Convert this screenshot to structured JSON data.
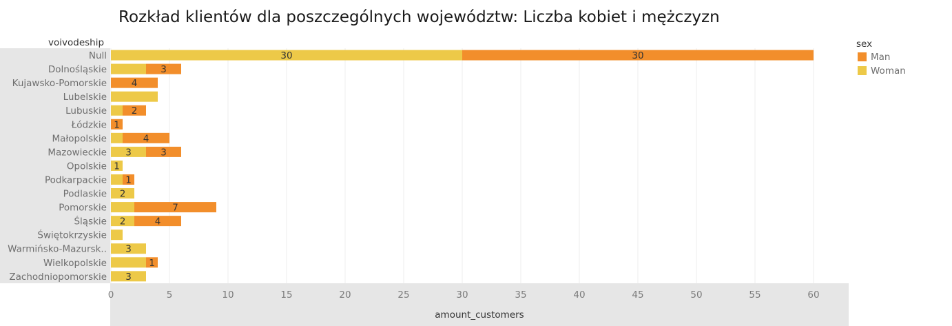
{
  "chart_data": {
    "type": "bar",
    "orientation": "horizontal",
    "stacked": true,
    "title": "Rozkład klientów dla poszczególnych województw: Liczba kobiet i mężczyzn",
    "row_header": "voivodeship",
    "xlabel": "amount_customers",
    "xlim": [
      0,
      63
    ],
    "xticks": [
      0,
      5,
      10,
      15,
      20,
      25,
      30,
      35,
      40,
      45,
      50,
      55,
      60
    ],
    "grid": true,
    "legend_title": "sex",
    "legend_position": "top-right",
    "categories": [
      "Null",
      "Dolnośląskie",
      "Kujawsko-Pomorskie",
      "Lubelskie",
      "Lubuskie",
      "Łódzkie",
      "Małopolskie",
      "Mazowieckie",
      "Opolskie",
      "Podkarpackie",
      "Podlaskie",
      "Pomorskie",
      "Śląskie",
      "Świętokrzyskie",
      "Warmińsko-Mazursk..",
      "Wielkopolskie",
      "Zachodniopomorskie"
    ],
    "series": [
      {
        "name": "Woman",
        "color": "#EDC948",
        "values": [
          30,
          3,
          0,
          4,
          1,
          0,
          1,
          3,
          1,
          1,
          2,
          2,
          2,
          1,
          3,
          3,
          3
        ]
      },
      {
        "name": "Man",
        "color": "#F28E2B",
        "values": [
          30,
          3,
          4,
          0,
          2,
          1,
          4,
          3,
          0,
          1,
          0,
          7,
          4,
          0,
          0,
          1,
          0
        ]
      }
    ],
    "data_labels": [
      {
        "category": "Null",
        "series": "Woman",
        "text": "30"
      },
      {
        "category": "Null",
        "series": "Man",
        "text": "30"
      },
      {
        "category": "Dolnośląskie",
        "series": "Man",
        "text": "3"
      },
      {
        "category": "Kujawsko-Pomorskie",
        "series": "Man",
        "text": "4"
      },
      {
        "category": "Lubuskie",
        "series": "Man",
        "text": "2"
      },
      {
        "category": "Łódzkie",
        "series": "Man",
        "text": "1"
      },
      {
        "category": "Małopolskie",
        "series": "Man",
        "text": "4"
      },
      {
        "category": "Mazowieckie",
        "series": "Woman",
        "text": "3"
      },
      {
        "category": "Mazowieckie",
        "series": "Man",
        "text": "3"
      },
      {
        "category": "Opolskie",
        "series": "Woman",
        "text": "1"
      },
      {
        "category": "Podkarpackie",
        "series": "Man",
        "text": "1"
      },
      {
        "category": "Podlaskie",
        "series": "Woman",
        "text": "2"
      },
      {
        "category": "Pomorskie",
        "series": "Man",
        "text": "7"
      },
      {
        "category": "Śląskie",
        "series": "Woman",
        "text": "2"
      },
      {
        "category": "Śląskie",
        "series": "Man",
        "text": "4"
      },
      {
        "category": "Warmińsko-Mazursk..",
        "series": "Woman",
        "text": "3"
      },
      {
        "category": "Wielkopolskie",
        "series": "Man",
        "text": "1"
      },
      {
        "category": "Zachodniopomorskie",
        "series": "Woman",
        "text": "3"
      }
    ]
  }
}
